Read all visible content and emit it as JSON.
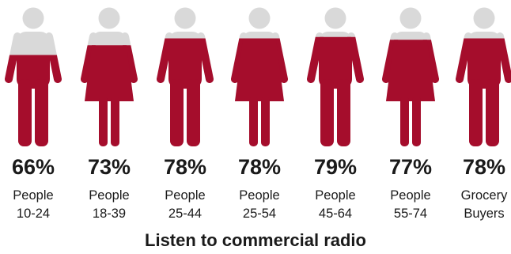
{
  "chart_data": {
    "type": "bar",
    "style": "pictogram",
    "title": "Listen to commercial radio",
    "categories": [
      {
        "line1": "People",
        "line2": "10-24",
        "figure": "male"
      },
      {
        "line1": "People",
        "line2": "18-39",
        "figure": "female"
      },
      {
        "line1": "People",
        "line2": "25-44",
        "figure": "male"
      },
      {
        "line1": "People",
        "line2": "25-54",
        "figure": "female"
      },
      {
        "line1": "People",
        "line2": "45-64",
        "figure": "male"
      },
      {
        "line1": "People",
        "line2": "55-74",
        "figure": "female"
      },
      {
        "line1": "Grocery",
        "line2": "Buyers",
        "figure": "male"
      }
    ],
    "values": [
      66,
      73,
      78,
      78,
      79,
      77,
      78
    ],
    "value_labels": [
      "66%",
      "73%",
      "78%",
      "78%",
      "79%",
      "77%",
      "78%"
    ],
    "ylim": [
      0,
      100
    ],
    "colors": {
      "fill": "#a50d2c",
      "empty": "#d9d9d9"
    }
  }
}
